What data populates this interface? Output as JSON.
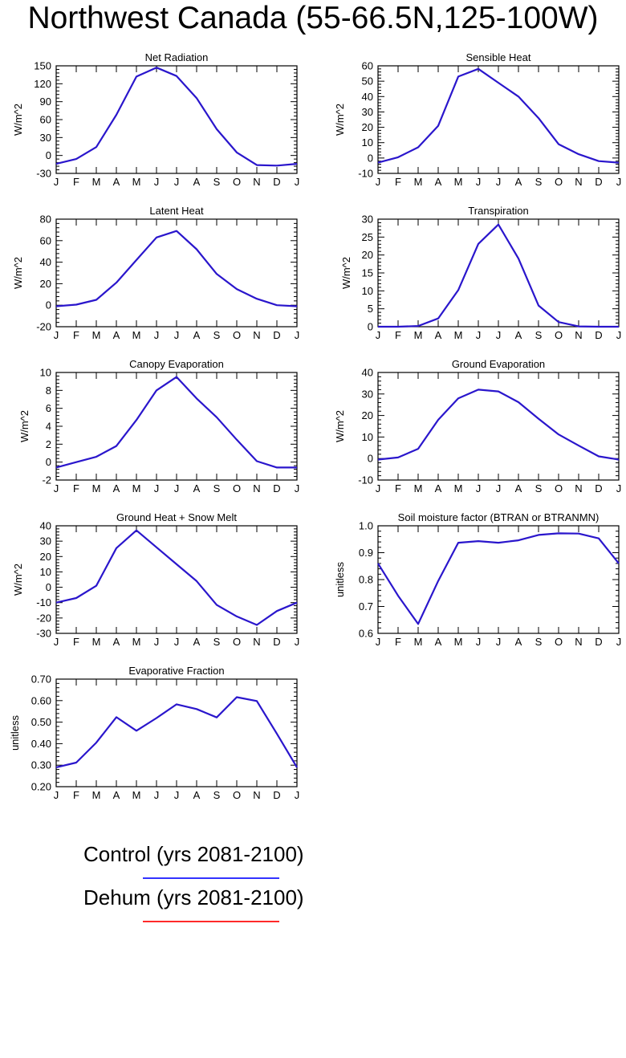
{
  "title": "Northwest Canada (55-66.5N,125-100W)",
  "colors": {
    "control": "#3333ff",
    "dehum": "#ff2a2a",
    "plotted_line": "#2a16cc"
  },
  "chart_data": [
    {
      "type": "line",
      "title": "Net Radiation",
      "ylabel": "W/m^2",
      "categories": [
        "J",
        "F",
        "M",
        "A",
        "M",
        "J",
        "J",
        "A",
        "S",
        "O",
        "N",
        "D",
        "J"
      ],
      "yticks": [
        -30,
        0,
        30,
        60,
        90,
        120,
        150
      ],
      "ytick_labels": [
        "-30",
        "0",
        "30",
        "60",
        "90",
        "120",
        "150"
      ],
      "ylim": [
        -30,
        150
      ],
      "series": [
        {
          "values": [
            -14,
            -6,
            14,
            68,
            132,
            147,
            133,
            96,
            44,
            5,
            -16,
            -17,
            -14
          ]
        }
      ]
    },
    {
      "type": "line",
      "title": "Sensible Heat",
      "ylabel": "W/m^2",
      "categories": [
        "J",
        "F",
        "M",
        "A",
        "M",
        "J",
        "J",
        "A",
        "S",
        "O",
        "N",
        "D",
        "J"
      ],
      "yticks": [
        -10,
        0,
        10,
        20,
        30,
        40,
        50,
        60
      ],
      "ytick_labels": [
        "-10",
        "0",
        "10",
        "20",
        "30",
        "40",
        "50",
        "60"
      ],
      "ylim": [
        -10,
        60
      ],
      "series": [
        {
          "values": [
            -3,
            0.5,
            7,
            21,
            53,
            58,
            49,
            40,
            26,
            9,
            2.5,
            -2,
            -3
          ]
        }
      ]
    },
    {
      "type": "line",
      "title": "Latent Heat",
      "ylabel": "W/m^2",
      "categories": [
        "J",
        "F",
        "M",
        "A",
        "M",
        "J",
        "J",
        "A",
        "S",
        "O",
        "N",
        "D",
        "J"
      ],
      "yticks": [
        -20,
        0,
        20,
        40,
        60,
        80
      ],
      "ytick_labels": [
        "-20",
        "0",
        "20",
        "40",
        "60",
        "80"
      ],
      "ylim": [
        -20,
        80
      ],
      "series": [
        {
          "values": [
            -1,
            0.5,
            5,
            21,
            42,
            63,
            69,
            52,
            29,
            15,
            6,
            0,
            -1
          ]
        }
      ]
    },
    {
      "type": "line",
      "title": "Transpiration",
      "ylabel": "W/m^2",
      "categories": [
        "J",
        "F",
        "M",
        "A",
        "M",
        "J",
        "J",
        "A",
        "S",
        "O",
        "N",
        "D",
        "J"
      ],
      "yticks": [
        0,
        5,
        10,
        15,
        20,
        25,
        30
      ],
      "ytick_labels": [
        "0",
        "5",
        "10",
        "15",
        "20",
        "25",
        "30"
      ],
      "ylim": [
        0,
        30
      ],
      "series": [
        {
          "values": [
            0,
            0,
            0.2,
            2.3,
            10.2,
            23.1,
            28.5,
            19,
            5.9,
            1.3,
            0.1,
            0,
            0
          ]
        }
      ]
    },
    {
      "type": "line",
      "title": "Canopy Evaporation",
      "ylabel": "W/m^2",
      "categories": [
        "J",
        "F",
        "M",
        "A",
        "M",
        "J",
        "J",
        "A",
        "S",
        "O",
        "N",
        "D",
        "J"
      ],
      "yticks": [
        -2,
        0,
        2,
        4,
        6,
        8,
        10
      ],
      "ytick_labels": [
        "-2",
        "0",
        "2",
        "4",
        "6",
        "8",
        "10"
      ],
      "ylim": [
        -2,
        10
      ],
      "series": [
        {
          "values": [
            -0.6,
            0,
            0.6,
            1.8,
            4.7,
            8,
            9.5,
            7.1,
            5,
            2.5,
            0.1,
            -0.6,
            -0.6
          ]
        }
      ]
    },
    {
      "type": "line",
      "title": "Ground Evaporation",
      "ylabel": "W/m^2",
      "categories": [
        "J",
        "F",
        "M",
        "A",
        "M",
        "J",
        "J",
        "A",
        "S",
        "O",
        "N",
        "D",
        "J"
      ],
      "yticks": [
        -10,
        0,
        10,
        20,
        30,
        40
      ],
      "ytick_labels": [
        "-10",
        "0",
        "10",
        "20",
        "30",
        "40"
      ],
      "ylim": [
        -10,
        40
      ],
      "series": [
        {
          "values": [
            -0.5,
            0.5,
            4.5,
            18,
            28,
            32,
            31.2,
            26.2,
            18.5,
            11.2,
            6,
            1,
            -0.5
          ]
        }
      ]
    },
    {
      "type": "line",
      "title": "Ground Heat + Snow Melt",
      "ylabel": "W/m^2",
      "categories": [
        "J",
        "F",
        "M",
        "A",
        "M",
        "J",
        "J",
        "A",
        "S",
        "O",
        "N",
        "D",
        "J"
      ],
      "yticks": [
        -30,
        -20,
        -10,
        0,
        10,
        20,
        30,
        40
      ],
      "ytick_labels": [
        "-30",
        "-20",
        "-10",
        "0",
        "10",
        "20",
        "30",
        "40"
      ],
      "ylim": [
        -30,
        40
      ],
      "series": [
        {
          "values": [
            -10,
            -7,
            1,
            25.5,
            37,
            26,
            15,
            4,
            -11.5,
            -19,
            -24.5,
            -15.5,
            -10
          ]
        }
      ]
    },
    {
      "type": "line",
      "title": "Soil moisture factor (BTRAN or BTRANMN)",
      "ylabel": "unitless",
      "categories": [
        "J",
        "F",
        "M",
        "A",
        "M",
        "J",
        "J",
        "A",
        "S",
        "O",
        "N",
        "D",
        "J"
      ],
      "yticks": [
        0.6,
        0.7,
        0.8,
        0.9,
        1.0
      ],
      "ytick_labels": [
        "0.6",
        "0.7",
        "0.8",
        "0.9",
        "1.0"
      ],
      "ylim": [
        0.6,
        1.0
      ],
      "series": [
        {
          "values": [
            0.86,
            0.74,
            0.635,
            0.795,
            0.937,
            0.943,
            0.937,
            0.946,
            0.966,
            0.972,
            0.971,
            0.953,
            0.86
          ]
        }
      ]
    },
    {
      "type": "line",
      "title": "Evaporative Fraction",
      "ylabel": "unitless",
      "categories": [
        "J",
        "F",
        "M",
        "A",
        "M",
        "J",
        "J",
        "A",
        "S",
        "O",
        "N",
        "D",
        "J"
      ],
      "yticks": [
        0.2,
        0.3,
        0.4,
        0.5,
        0.6,
        0.7
      ],
      "ytick_labels": [
        "0.20",
        "0.30",
        "0.40",
        "0.50",
        "0.60",
        "0.70"
      ],
      "ylim": [
        0.2,
        0.7
      ],
      "series": [
        {
          "values": [
            0.29,
            0.312,
            0.405,
            0.523,
            0.46,
            0.519,
            0.583,
            0.561,
            0.522,
            0.616,
            0.598,
            0.446,
            0.29
          ]
        }
      ]
    }
  ],
  "legend": [
    {
      "label": "Control (yrs 2081-2100)",
      "color": "#3333ff"
    },
    {
      "label": "Dehum (yrs 2081-2100)",
      "color": "#ff2a2a"
    }
  ]
}
